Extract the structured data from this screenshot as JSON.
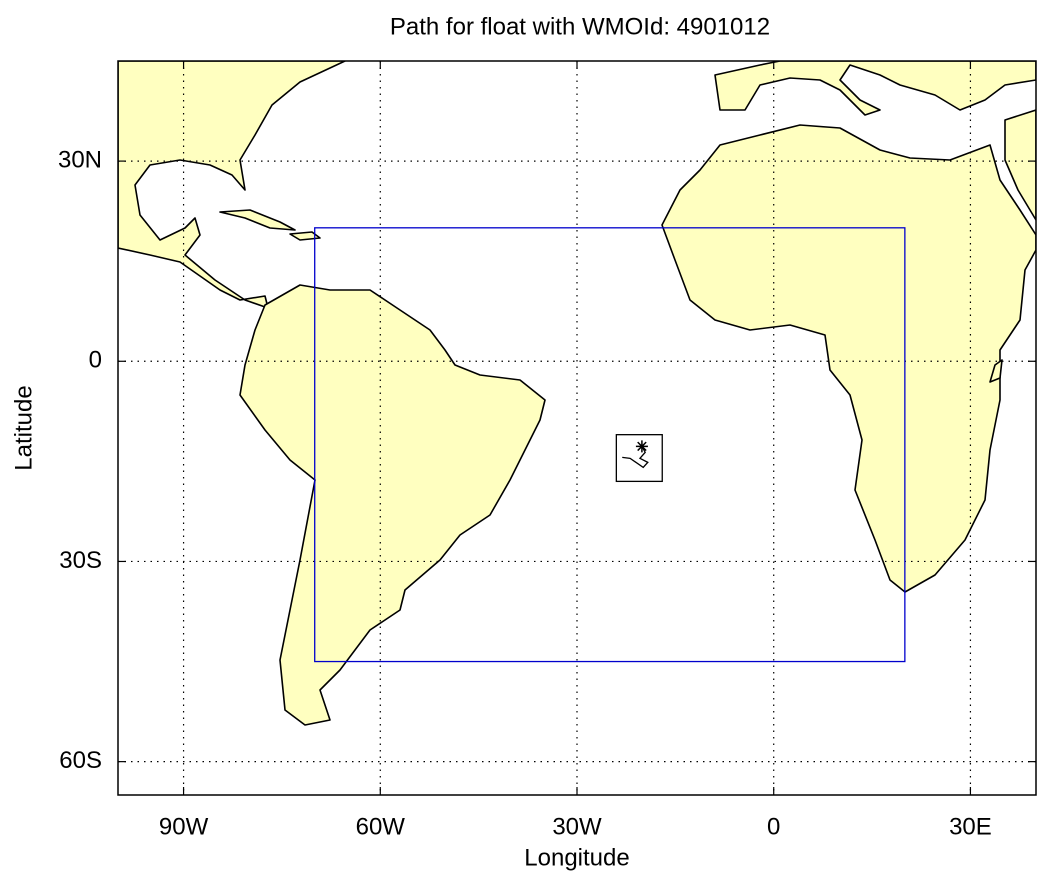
{
  "chart_data": {
    "type": "map",
    "title": "Path for float with WMOId: 4901012",
    "xlabel": "Longitude",
    "ylabel": "Latitude",
    "xlim": [
      -100,
      40
    ],
    "ylim": [
      -65,
      45
    ],
    "xticks": [
      {
        "value": -90,
        "label": "90W"
      },
      {
        "value": -60,
        "label": "60W"
      },
      {
        "value": -30,
        "label": "30W"
      },
      0,
      {
        "value": 30,
        "label": "30E"
      }
    ],
    "yticks": [
      {
        "value": 30,
        "label": "30N"
      },
      0,
      {
        "value": -30,
        "label": "30S"
      },
      {
        "value": -60,
        "label": "60S"
      }
    ],
    "grid": true,
    "land_color": "#ffffc0",
    "regions": [
      {
        "lon": [
          -70,
          20
        ],
        "lat": [
          -45,
          20
        ],
        "color": "#0000cc"
      },
      {
        "lon": [
          -24,
          -17
        ],
        "lat": [
          -18,
          -11
        ],
        "color": "#000000"
      }
    ],
    "float_path": {
      "lon": [
        -20.1,
        -19.6,
        -20.4,
        -19.2,
        -19.9,
        -21.9,
        -23.1
      ],
      "lat": [
        -12.75,
        -13.65,
        -14.55,
        -15.15,
        -15.9,
        -14.55,
        -14.4
      ],
      "color": "#000000"
    }
  }
}
